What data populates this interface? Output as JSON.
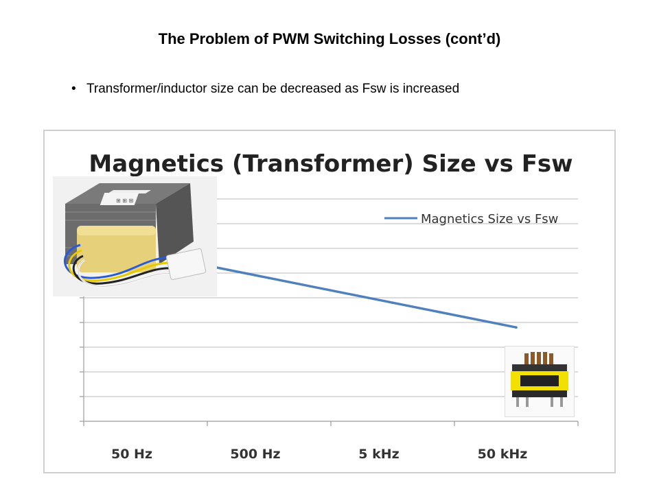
{
  "slide": {
    "title": "The Problem of PWM Switching Losses (cont’d)",
    "bullet_symbol": "•",
    "bullet": "Transformer/inductor size can be decreased as Fsw is increased"
  },
  "images": {
    "transformer_photo": {
      "icon": "transformer-photo",
      "label_text": "⊞ ⊞ ⊞"
    },
    "inductor_photo": {
      "icon": "inductor-photo"
    }
  },
  "chart_data": {
    "type": "line",
    "title": "Magnetics (Transformer) Size vs Fsw",
    "xlabel": "",
    "ylabel": "",
    "categories": [
      "50  Hz",
      "500 Hz",
      "5 kHz",
      "50 kHz"
    ],
    "series": [
      {
        "name": "Magnetics Size vs Fsw",
        "color": "#4f81bd",
        "values": [
          6.8,
          5.8,
          4.8,
          3.8
        ]
      }
    ],
    "ylim": [
      0,
      9
    ],
    "y_tick_labels": "none",
    "grid": true,
    "legend": "top-right"
  }
}
